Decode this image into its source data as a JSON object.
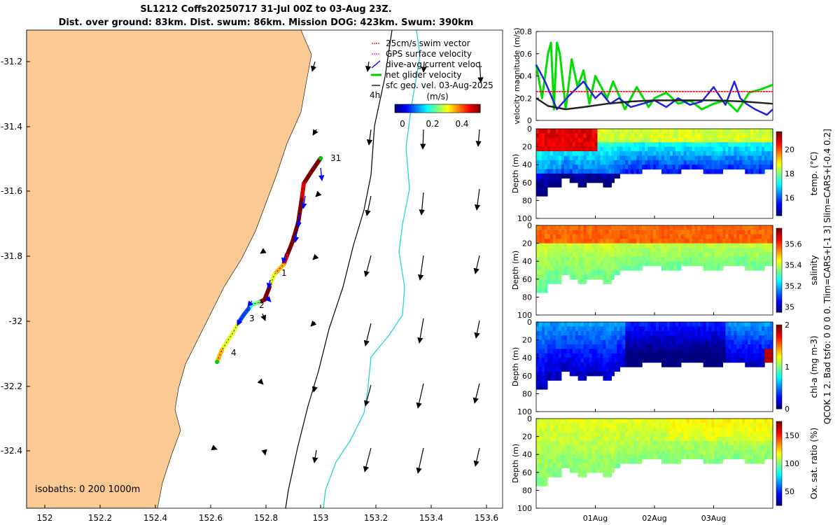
{
  "header": {
    "title_line1": "SL1212 Coffs20250717 31-Jul 00Z to 03-Aug 23Z.",
    "title_line2": "Dist. over ground: 83km. Dist. swum: 86km. Mission DOG: 423km. Swum: 390km"
  },
  "chart_data": [
    {
      "type": "map",
      "name": "glider-track-map",
      "x_ticks": [
        "152",
        "152.2",
        "152.4",
        "152.6",
        "152.8",
        "153",
        "153.2",
        "153.4",
        "153.6"
      ],
      "x_values": [
        152,
        152.2,
        152.4,
        152.6,
        152.8,
        153,
        153.2,
        153.4,
        153.6
      ],
      "y_ticks": [
        "-31.2",
        "-31.4",
        "-31.6",
        "-31.8",
        "-32",
        "-32.2",
        "-32.4"
      ],
      "y_values": [
        -31.2,
        -31.4,
        -31.6,
        -31.8,
        -32,
        -32.2,
        -32.4
      ],
      "xlim": [
        151.97,
        153.66
      ],
      "ylim": [
        -32.58,
        -31.08
      ],
      "legend": [
        {
          "label": "25cm/s swim vector",
          "color": "#ff0000"
        },
        {
          "label": "GPS surface velocity",
          "color": "#ff00ff"
        },
        {
          "label": "dive-avg current veloc.",
          "color": "#0000ff"
        },
        {
          "label": "net glider velocity",
          "color": "#00cc00"
        },
        {
          "label": "sfc geo. vel. 03-Aug-2025",
          "color": "#000000"
        }
      ],
      "colorbar": {
        "unit": "(m/s)",
        "ticks": [
          "0",
          "0.2",
          "0.4"
        ],
        "range": [
          -0.05,
          0.5
        ]
      },
      "scale_label": "4h",
      "isobath_label": "isobaths: 0   200  1000m",
      "day_labels": [
        {
          "label": "31",
          "lon": 153.01,
          "lat": -31.54
        },
        {
          "label": "1",
          "lon": 152.87,
          "lat": -31.85
        },
        {
          "label": "2",
          "lon": 152.79,
          "lat": -31.94
        },
        {
          "label": "3",
          "lon": 152.74,
          "lat": -31.99
        },
        {
          "label": "4",
          "lon": 152.66,
          "lat": -32.08
        }
      ],
      "track": [
        [
          153.0,
          -31.51
        ],
        [
          152.96,
          -31.56
        ],
        [
          152.93,
          -31.6
        ],
        [
          152.93,
          -31.66
        ],
        [
          152.92,
          -31.72
        ],
        [
          152.9,
          -31.77
        ],
        [
          152.88,
          -31.81
        ],
        [
          152.86,
          -31.84
        ],
        [
          152.85,
          -31.87
        ],
        [
          152.84,
          -31.9
        ],
        [
          152.82,
          -31.93
        ],
        [
          152.8,
          -31.94
        ],
        [
          152.77,
          -31.95
        ],
        [
          152.75,
          -31.96
        ],
        [
          152.73,
          -31.98
        ],
        [
          152.71,
          -32.01
        ],
        [
          152.69,
          -32.04
        ],
        [
          152.66,
          -32.07
        ],
        [
          152.64,
          -32.11
        ],
        [
          152.63,
          -32.13
        ]
      ],
      "track_color_speeds": [
        0.5,
        0.5,
        0.45,
        0.5,
        0.5,
        0.5,
        0.45,
        0.35,
        0.3,
        0.5,
        0.5,
        0.25,
        0.2,
        0.1,
        0.1,
        0.3,
        0.3,
        0.3,
        0.35,
        0.3
      ]
    },
    {
      "type": "line",
      "name": "velocity-magnitude-plot",
      "ylabel": "velocity magnitude (m/s)",
      "ylim": [
        0,
        0.8
      ],
      "y_ticks": [
        "0",
        "0.2",
        "0.4",
        "0.6",
        "0.8"
      ],
      "xlim": [
        0,
        4
      ],
      "series": [
        {
          "name": "net glider velocity",
          "color": "#00dd00",
          "x": [
            0,
            0.1,
            0.2,
            0.25,
            0.3,
            0.35,
            0.4,
            0.5,
            0.6,
            0.7,
            0.8,
            0.9,
            1.0,
            1.1,
            1.2,
            1.3,
            1.5,
            1.7,
            1.9,
            2.0,
            2.2,
            2.4,
            2.6,
            2.8,
            3.0,
            3.2,
            3.4,
            3.6,
            3.8,
            4.0
          ],
          "values": [
            0.5,
            0.2,
            0.6,
            0.7,
            0.1,
            0.7,
            0.6,
            0.1,
            0.55,
            0.3,
            0.45,
            0.15,
            0.4,
            0.3,
            0.2,
            0.35,
            0.1,
            0.3,
            0.12,
            0.2,
            0.25,
            0.15,
            0.18,
            0.1,
            0.15,
            0.18,
            0.08,
            0.25,
            0.28,
            0.32
          ]
        },
        {
          "name": "dive-avg current veloc.",
          "color": "#2222dd",
          "x": [
            0,
            0.05,
            0.15,
            0.35,
            0.55,
            0.8,
            1.0,
            1.1,
            1.25,
            1.4,
            1.6,
            2.0,
            2.2,
            2.4,
            2.6,
            2.8,
            3.0,
            3.2,
            3.35,
            3.45,
            3.55,
            3.7,
            3.9,
            4.0
          ],
          "values": [
            0.5,
            0.45,
            0.35,
            0.1,
            0.22,
            0.35,
            0.2,
            0.25,
            0.15,
            0.2,
            0.12,
            0.18,
            0.12,
            0.2,
            0.14,
            0.17,
            0.3,
            0.14,
            0.35,
            0.2,
            0.15,
            0.1,
            0.05,
            0.1
          ]
        },
        {
          "name": "25cm/s swim vector",
          "color": "#ff0000",
          "x": [
            0,
            4
          ],
          "values": [
            0.26,
            0.26
          ]
        },
        {
          "name": "sfc geo. vel.",
          "color": "#222222",
          "x": [
            0,
            0.2,
            0.5,
            0.8,
            1.2,
            1.6,
            2.0,
            2.5,
            3.0,
            3.5,
            4.0
          ],
          "values": [
            0.2,
            0.13,
            0.1,
            0.12,
            0.15,
            0.17,
            0.18,
            0.18,
            0.18,
            0.17,
            0.15
          ]
        }
      ]
    },
    {
      "type": "heatmap",
      "name": "temperature-section",
      "ylabel": "Depth (m)",
      "clabel": "temp. (°C)",
      "ylim": [
        0,
        100
      ],
      "y_ticks": [
        "0",
        "20",
        "40",
        "60",
        "80",
        "100"
      ],
      "c_ticks": [
        "16",
        "18",
        "20"
      ],
      "crange": [
        14.5,
        21.5
      ],
      "surface_value": 20.5,
      "deep_value": 17.5
    },
    {
      "type": "heatmap",
      "name": "salinity-section",
      "ylabel": "Depth (m)",
      "clabel": "salinity",
      "ylim": [
        0,
        100
      ],
      "y_ticks": [
        "0",
        "20",
        "40",
        "60",
        "80",
        "100"
      ],
      "c_ticks": [
        "35",
        "35.2",
        "35.4",
        "35.6"
      ],
      "crange": [
        34.95,
        35.75
      ],
      "surface_value": 35.58,
      "deep_value": 35.35
    },
    {
      "type": "heatmap",
      "name": "chlorophyll-section",
      "ylabel": "Depth (m)",
      "clabel": "chl-a  (mg m-3)",
      "ylim": [
        0,
        100
      ],
      "y_ticks": [
        "0",
        "20",
        "40",
        "60",
        "80",
        "100"
      ],
      "c_ticks": [
        "0",
        "1",
        "2"
      ],
      "crange": [
        0,
        2
      ],
      "surface_value": 0.45,
      "deep_value": 0.1
    },
    {
      "type": "heatmap",
      "name": "oxygen-section",
      "ylabel": "Depth (m)",
      "clabel": "Ox. sat. ratio (%)",
      "ylim": [
        0,
        100
      ],
      "y_ticks": [
        "0",
        "20",
        "40",
        "60",
        "80",
        "100"
      ],
      "c_ticks": [
        "50",
        "100",
        "150"
      ],
      "crange": [
        25,
        175
      ],
      "surface_value": 110,
      "deep_value": 100,
      "x_ticks": [
        "01Aug",
        "02Aug",
        "03Aug"
      ],
      "x_values": [
        1,
        2,
        3
      ],
      "xlim": [
        0,
        4
      ]
    }
  ],
  "side_notes": {
    "label1": "QCOK 1 2. Bad tsfo: 0 0 0 0. Tlim=CARS+[-1 3] Slim=CARS+[-0.4 0.2]"
  }
}
